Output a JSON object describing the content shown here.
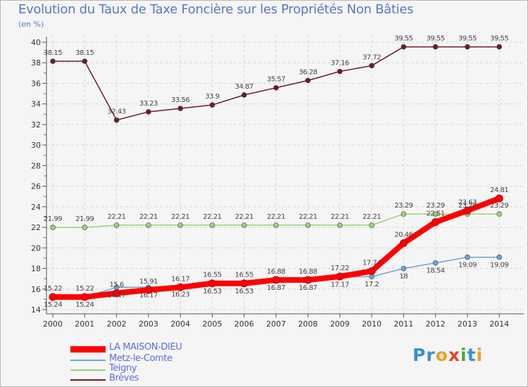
{
  "chart_data": {
    "type": "line",
    "title": "Evolution du Taux de Taxe Foncière sur les Propriétés Non Bâties",
    "ylabel": "(en %)",
    "xlabel": "",
    "ylim": [
      14,
      40
    ],
    "yticks": [
      "14",
      "16",
      "18",
      "20",
      "22",
      "24",
      "26",
      "28",
      "30",
      "32",
      "34",
      "36",
      "38",
      "40"
    ],
    "categories": [
      "2000",
      "2001",
      "2002",
      "2003",
      "2004",
      "2005",
      "2006",
      "2007",
      "2008",
      "2009",
      "2010",
      "2011",
      "2012",
      "2013",
      "2014"
    ],
    "series": [
      {
        "name": "Brèves",
        "color": "#6b1d25",
        "values": [
          38.15,
          38.15,
          32.43,
          33.23,
          33.56,
          33.9,
          34.87,
          35.57,
          36.28,
          37.16,
          37.72,
          39.55,
          39.55,
          39.55,
          39.55
        ],
        "labels": [
          "38.15",
          "38.15",
          "32.43",
          "33.23",
          "33.56",
          "33.9",
          "34.87",
          "35.57",
          "36.28",
          "37.16",
          "37.72",
          "39.55",
          "39.55",
          "39.55",
          "39.55"
        ]
      },
      {
        "name": "Teigny",
        "color": "#9bd27a",
        "values": [
          21.99,
          21.99,
          22.21,
          22.21,
          22.21,
          22.21,
          22.21,
          22.21,
          22.21,
          22.21,
          22.21,
          23.29,
          23.29,
          23.29,
          23.29
        ],
        "labels": [
          "21.99",
          "21.99",
          "22.21",
          "22.21",
          "22.21",
          "22.21",
          "22.21",
          "22.21",
          "22.21",
          "22.21",
          "22.21",
          "23.29",
          "23.29",
          "23.29",
          "23.29"
        ]
      },
      {
        "name": "Metz-le-Comte",
        "color": "#6fa3d4",
        "values": [
          15.24,
          15.24,
          16.17,
          16.17,
          16.23,
          16.53,
          16.53,
          16.87,
          16.87,
          17.17,
          17.2,
          18,
          18.54,
          19.09,
          19.09
        ],
        "labels": [
          "15.24",
          "15.24",
          "16.17",
          "16.17",
          "16.23",
          "16.53",
          "16.53",
          "16.87",
          "16.87",
          "17.17",
          "17.2",
          "18",
          "18.54",
          "19.09",
          "19.09"
        ]
      },
      {
        "name": "LA MAISON-DIEU",
        "color": "#ff0000",
        "values": [
          15.22,
          15.22,
          15.6,
          15.91,
          16.17,
          16.55,
          16.55,
          16.88,
          16.88,
          17.22,
          17.74,
          20.46,
          22.51,
          23.63,
          24.81
        ],
        "labels": [
          "15.22",
          "15.22",
          "15.6",
          "15.91",
          "16.17",
          "16.55",
          "16.55",
          "16.88",
          "16.88",
          "17.22",
          "17.74",
          "20.46",
          "22.51",
          "23.63",
          "24.81"
        ]
      }
    ]
  },
  "legend": {
    "items": [
      "LA MAISON-DIEU",
      "Metz-le-Comte",
      "Teigny",
      "Brèves"
    ]
  },
  "brand": {
    "logo_p": "Pr",
    "logo_o": "o",
    "logo_x": "x",
    "logo_i": "i",
    "logo_t": "t",
    "logo_i2": "i"
  }
}
